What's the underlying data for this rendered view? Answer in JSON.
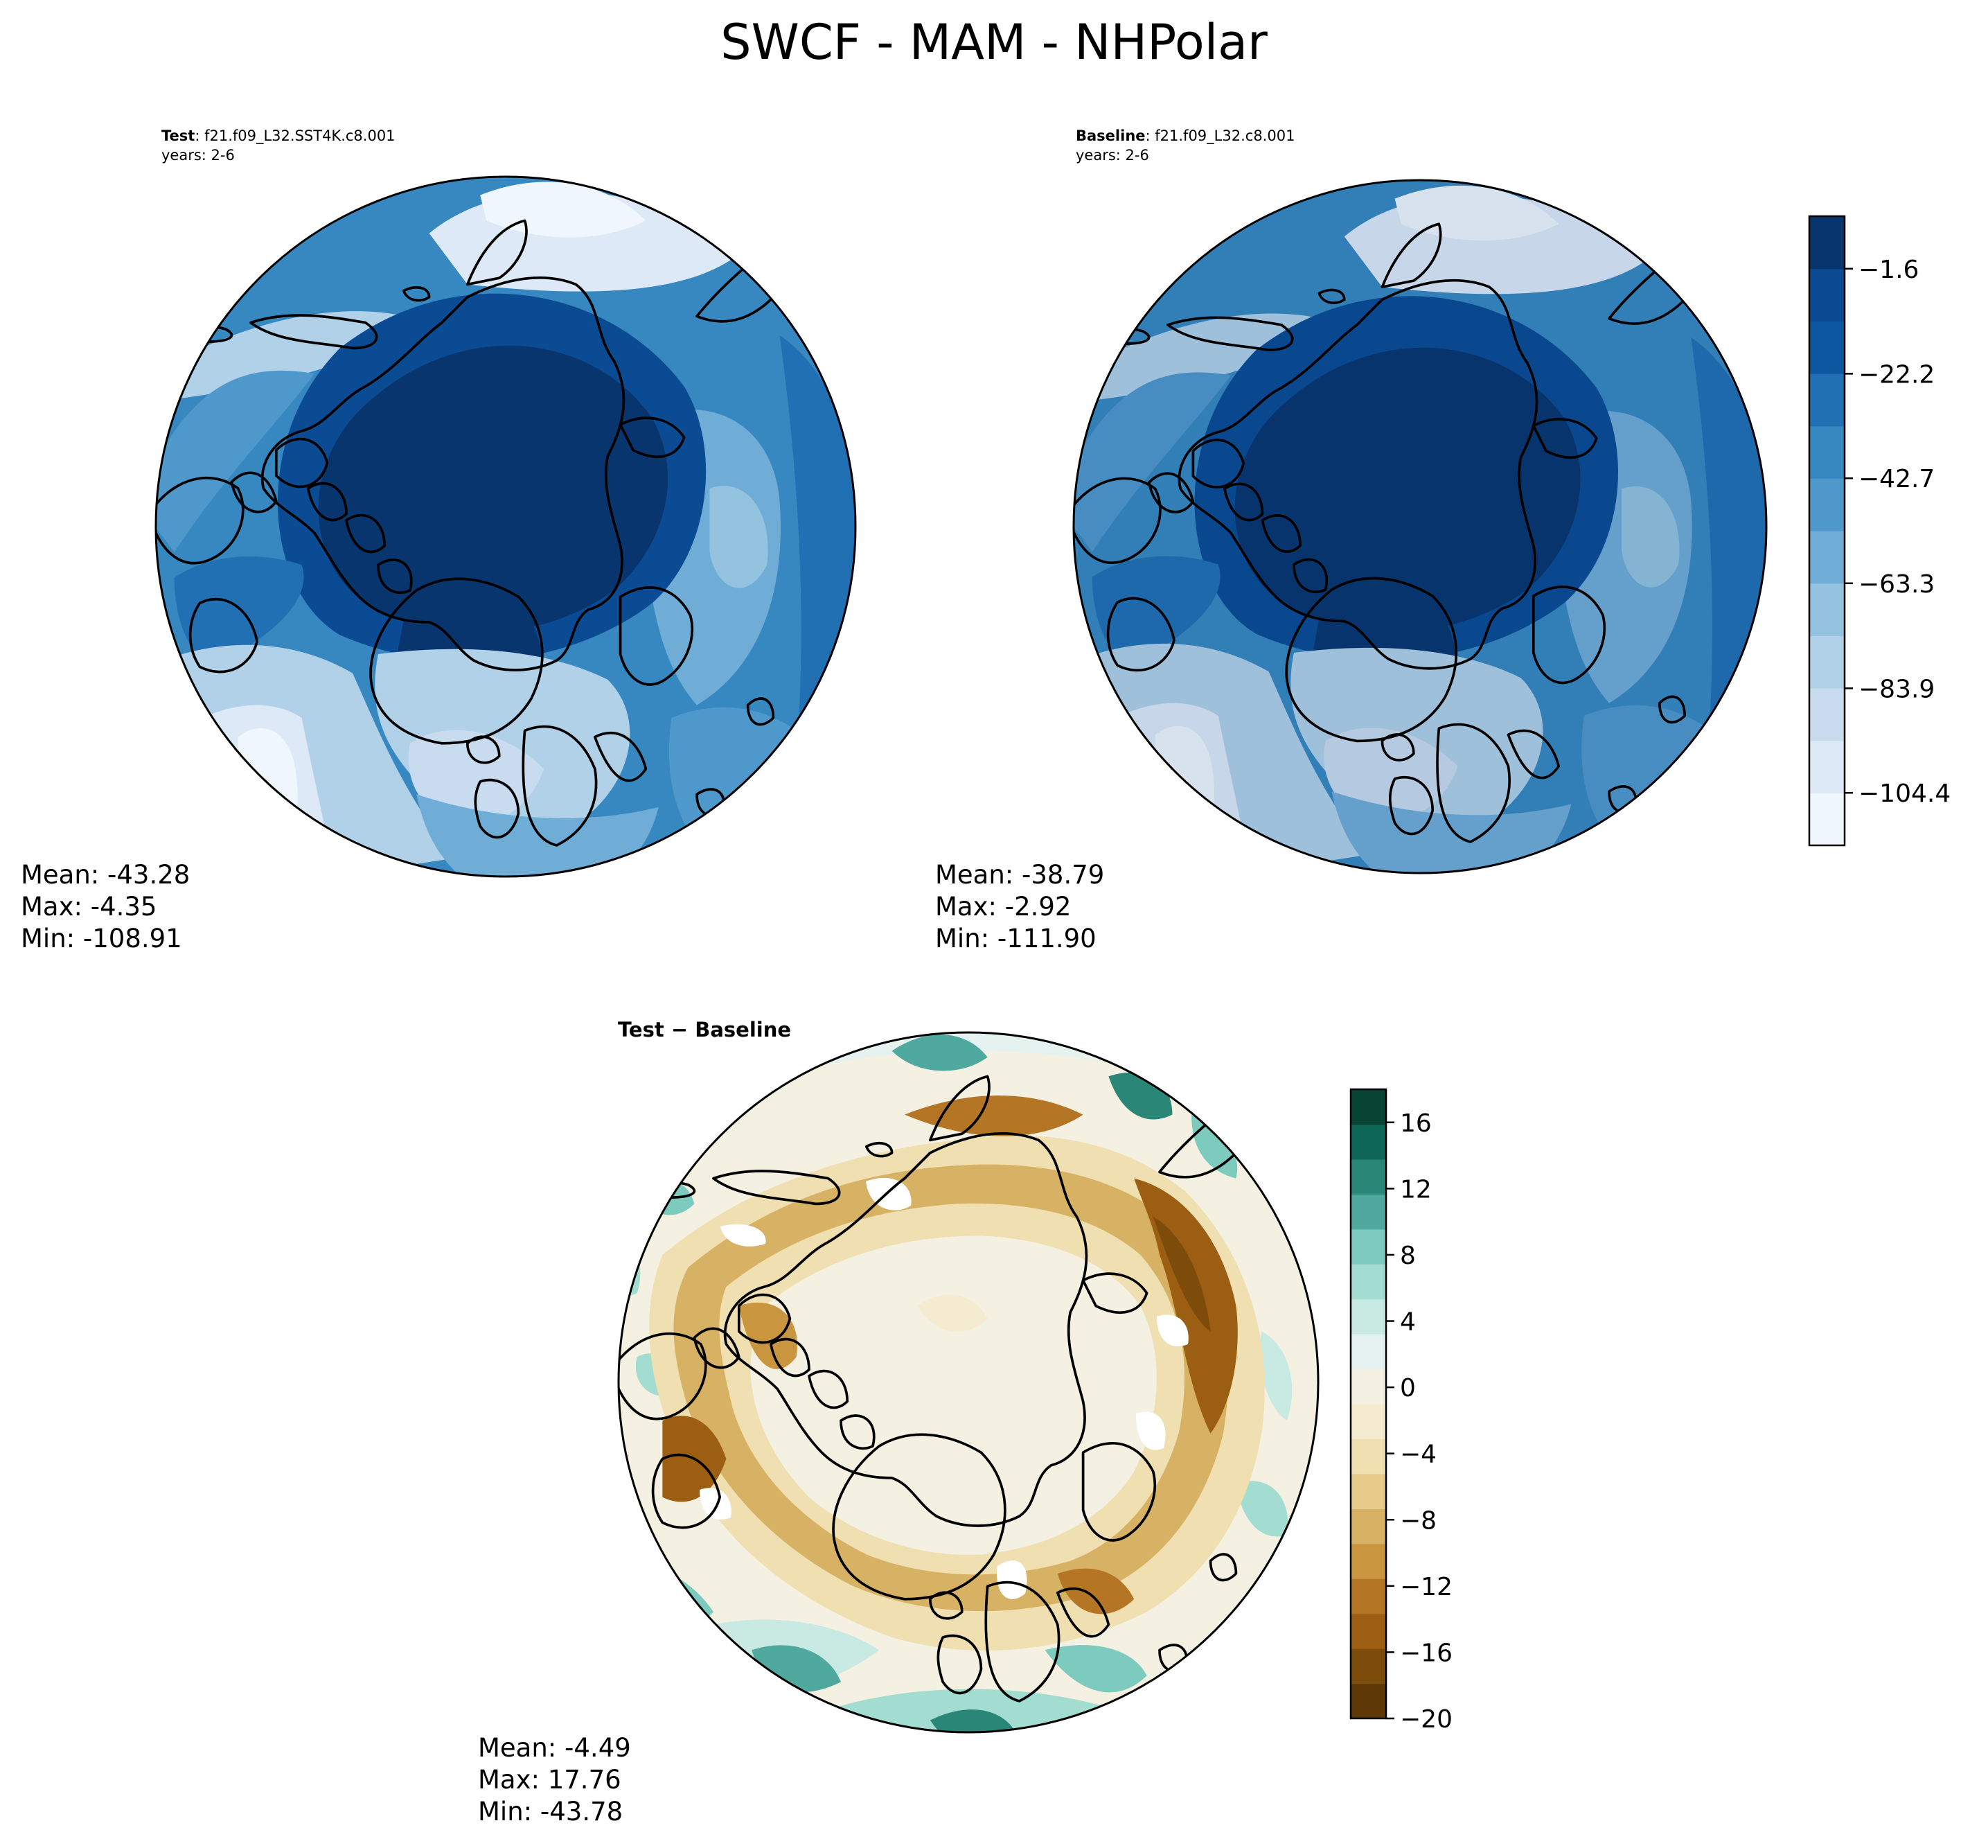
{
  "figure": {
    "title": "SWCF - MAM - NHPolar"
  },
  "panels": {
    "test": {
      "label_bold": "Test",
      "label_rest": ": f21.f09_L32.SST4K.c8.001",
      "years": "years: 2-6",
      "stats": {
        "mean": "Mean: -43.28",
        "max": "Max: -4.35",
        "min": "Min: -108.91"
      }
    },
    "baseline": {
      "label_bold": "Baseline",
      "label_rest": ": f21.f09_L32.c8.001",
      "years": "years: 2-6",
      "stats": {
        "mean": "Mean: -38.79",
        "max": "Max: -2.92",
        "min": "Min: -111.90"
      }
    },
    "diff": {
      "title": "Test − Baseline",
      "stats": {
        "mean": "Mean: -4.49",
        "max": "Max: 17.76",
        "min": "Min: -43.78"
      }
    }
  },
  "colorbar_top": {
    "ticks": [
      "−1.6",
      "−22.2",
      "−42.7",
      "−63.3",
      "−83.9",
      "−104.4"
    ],
    "tick_values": [
      -1.6,
      -22.2,
      -42.7,
      -63.3,
      -83.9,
      -104.4
    ],
    "range": [
      -114.7,
      8.7
    ],
    "colors": [
      "#f0f6fd",
      "#dde9f6",
      "#c9dcef",
      "#b0d1e7",
      "#93c3df",
      "#6fadd6",
      "#4f98cb",
      "#3787c0",
      "#2170b4",
      "#0d57a1",
      "#0a4b94",
      "#08356e"
    ]
  },
  "colorbar_bottom": {
    "ticks": [
      "16",
      "12",
      "8",
      "4",
      "0",
      "−4",
      "−8",
      "−12",
      "−16",
      "−20"
    ],
    "tick_values": [
      16,
      12,
      8,
      4,
      0,
      -4,
      -8,
      -12,
      -16,
      -20
    ],
    "range": [
      -20,
      18
    ],
    "colors": [
      "#5e3806",
      "#7e4c0a",
      "#9b5e12",
      "#b47624",
      "#c9953f",
      "#d7b164",
      "#e6cb8a",
      "#f0dfb0",
      "#f5ebd0",
      "#f4f1e2",
      "#e5f2ef",
      "#c8eae2",
      "#a3ddd2",
      "#7dcbbf",
      "#4fa99e",
      "#2a8677",
      "#0e6657",
      "#074434"
    ]
  },
  "chart_data": [
    {
      "type": "heatmap",
      "projection": "north polar stereographic",
      "title": "Test : f21.f09_L32.SST4K.c8.001",
      "subtitle": "years: 2-6",
      "colorbar_ticks": [
        -1.6,
        -22.2,
        -42.7,
        -63.3,
        -83.9,
        -104.4
      ],
      "stats": {
        "mean": -43.28,
        "max": -4.35,
        "min": -108.91
      }
    },
    {
      "type": "heatmap",
      "projection": "north polar stereographic",
      "title": "Baseline : f21.f09_L32.c8.001",
      "subtitle": "years: 2-6",
      "colorbar_ticks": [
        -1.6,
        -22.2,
        -42.7,
        -63.3,
        -83.9,
        -104.4
      ],
      "stats": {
        "mean": -38.79,
        "max": -2.92,
        "min": -111.9
      }
    },
    {
      "type": "heatmap",
      "projection": "north polar stereographic",
      "title": "Test − Baseline",
      "colorbar_ticks": [
        16,
        12,
        8,
        4,
        0,
        -4,
        -8,
        -12,
        -16,
        -20
      ],
      "stats": {
        "mean": -4.49,
        "max": 17.76,
        "min": -43.78
      }
    }
  ]
}
